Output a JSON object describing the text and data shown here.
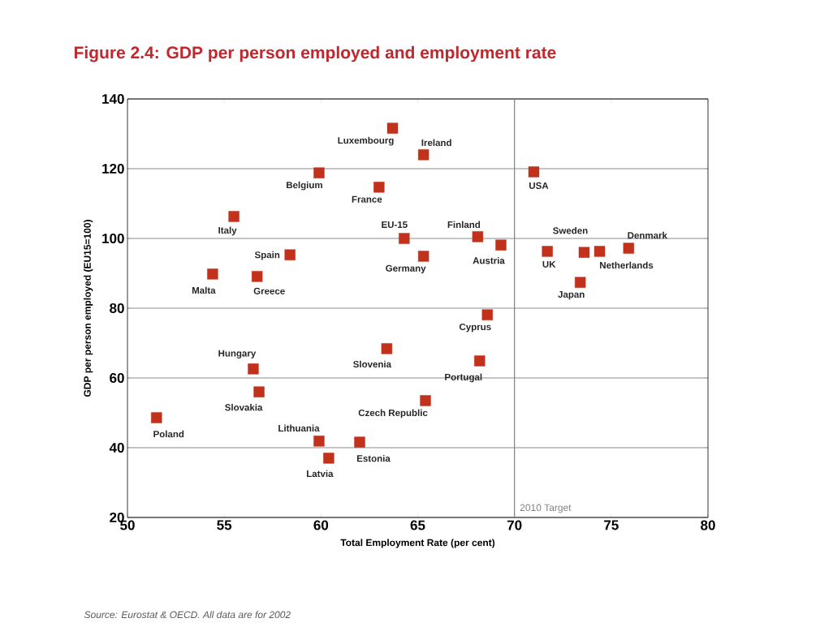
{
  "chart_data": {
    "type": "scatter",
    "title": "Figure 2.4:  GDP per person employed and employment rate",
    "xlabel": "Total Employment Rate (per cent)",
    "ylabel": "GDP per person employed (EU15=100)",
    "xlim": [
      50,
      80
    ],
    "ylim": [
      20,
      140
    ],
    "xticks": [
      50,
      55,
      60,
      65,
      70,
      75,
      80
    ],
    "yticks": [
      20,
      40,
      60,
      80,
      100,
      120,
      140
    ],
    "grid": "y",
    "marker": "square",
    "series": [
      {
        "color": "#c1311b",
        "x": [
          63.7,
          65.3,
          59.9,
          63.0,
          71.0,
          55.5,
          64.3,
          68.1,
          69.3,
          73.6,
          74.4,
          71.7,
          75.9,
          73.4,
          58.4,
          65.3,
          54.4,
          56.7,
          68.6,
          63.4,
          68.2,
          56.5,
          56.8,
          65.4,
          51.5,
          59.9,
          62.0,
          60.4
        ],
        "values": [
          131.6,
          124.0,
          118.8,
          114.7,
          119.1,
          106.3,
          100.0,
          100.5,
          98.1,
          96.0,
          96.3,
          96.3,
          97.2,
          87.4,
          95.3,
          94.9,
          89.8,
          89.1,
          78.1,
          68.4,
          64.9,
          62.6,
          56.0,
          53.5,
          48.6,
          41.9,
          41.6,
          37.0
        ]
      }
    ],
    "ref_lines": [
      {
        "axis": "x",
        "value": 70,
        "label": "2010 Target",
        "color": "#808080"
      }
    ],
    "annotations": [
      {
        "text": "Luxembourg",
        "x": 63.7,
        "y": 131.6
      },
      {
        "text": "Ireland",
        "x": 65.3,
        "y": 124.0
      },
      {
        "text": "Belgium",
        "x": 59.9,
        "y": 118.8
      },
      {
        "text": "France",
        "x": 63.0,
        "y": 114.7
      },
      {
        "text": "USA",
        "x": 71.0,
        "y": 119.1
      },
      {
        "text": "Italy",
        "x": 55.5,
        "y": 106.3
      },
      {
        "text": "EU-15",
        "x": 64.3,
        "y": 100.0
      },
      {
        "text": "Finland",
        "x": 68.1,
        "y": 100.5
      },
      {
        "text": "Austria",
        "x": 69.3,
        "y": 98.1
      },
      {
        "text": "Sweden",
        "x": 73.6,
        "y": 96.0
      },
      {
        "text": "Netherlands",
        "x": 74.4,
        "y": 96.3
      },
      {
        "text": "UK",
        "x": 71.7,
        "y": 96.3
      },
      {
        "text": "Denmark",
        "x": 75.9,
        "y": 97.2
      },
      {
        "text": "Japan",
        "x": 73.4,
        "y": 87.4
      },
      {
        "text": "Spain",
        "x": 58.4,
        "y": 95.3
      },
      {
        "text": "Germany",
        "x": 65.3,
        "y": 94.9
      },
      {
        "text": "Malta",
        "x": 54.4,
        "y": 89.8
      },
      {
        "text": "Greece",
        "x": 56.7,
        "y": 89.1
      },
      {
        "text": "Cyprus",
        "x": 68.6,
        "y": 78.1
      },
      {
        "text": "Slovenia",
        "x": 63.4,
        "y": 68.4
      },
      {
        "text": "Portugal",
        "x": 68.2,
        "y": 64.9
      },
      {
        "text": "Hungary",
        "x": 56.5,
        "y": 62.6
      },
      {
        "text": "Slovakia",
        "x": 56.8,
        "y": 56.0
      },
      {
        "text": "Czech Republic",
        "x": 65.4,
        "y": 53.5
      },
      {
        "text": "Poland",
        "x": 51.5,
        "y": 48.6
      },
      {
        "text": "Lithuania",
        "x": 59.9,
        "y": 41.9
      },
      {
        "text": "Estonia",
        "x": 62.0,
        "y": 41.6
      },
      {
        "text": "Latvia",
        "x": 60.4,
        "y": 37.0
      },
      "Source: Eurostat & OECD. All data are for 2002"
    ]
  }
}
